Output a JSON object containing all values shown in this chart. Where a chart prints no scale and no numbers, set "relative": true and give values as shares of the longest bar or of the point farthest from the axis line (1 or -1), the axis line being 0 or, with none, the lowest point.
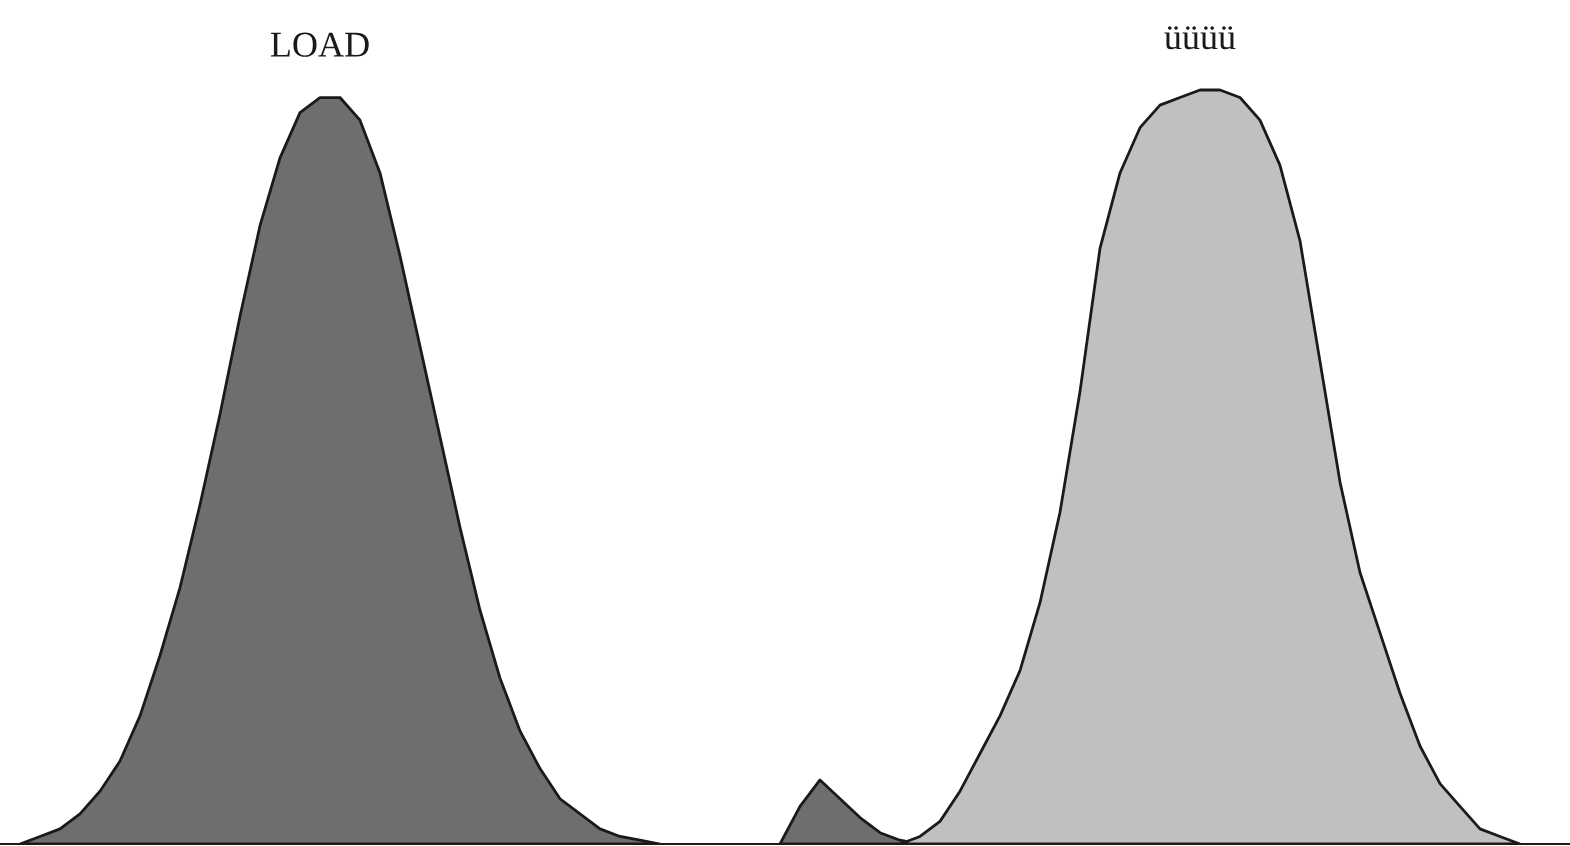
{
  "chart_data": {
    "type": "area",
    "relative": true,
    "categories": [
      null,
      null,
      null,
      null,
      null,
      null,
      null,
      null,
      null,
      null,
      null,
      null,
      null,
      null,
      null,
      null,
      null,
      null,
      null,
      null,
      null,
      null,
      null,
      null,
      null,
      null,
      null,
      null,
      null,
      null,
      null,
      null,
      null,
      null,
      null,
      null,
      null,
      null,
      null,
      null,
      null,
      null,
      null,
      null,
      null,
      null,
      null,
      null,
      null,
      null,
      null,
      null,
      null,
      null,
      null,
      null,
      null,
      null,
      null,
      null,
      null,
      null,
      null,
      null,
      null,
      null,
      null,
      null,
      null,
      null,
      null,
      null,
      null,
      null,
      null,
      null,
      null,
      null
    ],
    "series": [
      {
        "name": "LOAD",
        "color": "#6f6e6c",
        "values": [
          0,
          0.01,
          0.02,
          0.04,
          0.07,
          0.11,
          0.17,
          0.25,
          0.34,
          0.45,
          0.57,
          0.7,
          0.82,
          0.91,
          0.97,
          0.99,
          0.99,
          0.96,
          0.89,
          0.78,
          0.66,
          0.54,
          0.42,
          0.31,
          0.22,
          0.15,
          0.1,
          0.06,
          0.04,
          0.02,
          0.01,
          0.005,
          0,
          null,
          null,
          null,
          null,
          null,
          0,
          0.05,
          0.085,
          0.06,
          0.035,
          0.015,
          0.005,
          0,
          null,
          null,
          null,
          null,
          null,
          null,
          null,
          null,
          null,
          null,
          null,
          null,
          null,
          null,
          null,
          null,
          null,
          null,
          null,
          null,
          null,
          null,
          null,
          null,
          null,
          null,
          null,
          null,
          null,
          null,
          null,
          null
        ]
      },
      {
        "name": "üüüü",
        "color": "#c0c0bf",
        "values": [
          null,
          null,
          null,
          null,
          null,
          null,
          null,
          null,
          null,
          null,
          null,
          null,
          null,
          null,
          null,
          null,
          null,
          null,
          null,
          null,
          null,
          null,
          null,
          null,
          null,
          null,
          null,
          null,
          null,
          null,
          null,
          null,
          null,
          null,
          null,
          null,
          null,
          null,
          null,
          null,
          null,
          null,
          null,
          null,
          0,
          0.01,
          0.03,
          0.07,
          0.12,
          0.17,
          0.23,
          0.32,
          0.44,
          0.6,
          0.79,
          0.89,
          0.95,
          0.98,
          0.99,
          1.0,
          1.0,
          0.99,
          0.96,
          0.9,
          0.8,
          0.64,
          0.48,
          0.36,
          0.28,
          0.2,
          0.13,
          0.08,
          0.05,
          0.02,
          0.01,
          0,
          null,
          null
        ]
      }
    ]
  }
}
